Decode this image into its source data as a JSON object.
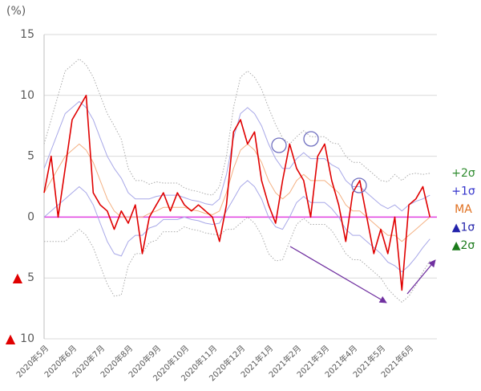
{
  "chart_data": {
    "type": "line",
    "y_label": "(%)",
    "categories": [
      "2020年5月",
      null,
      null,
      null,
      "2020年6月",
      null,
      null,
      null,
      "2020年7月",
      null,
      null,
      null,
      "2020年8月",
      null,
      null,
      null,
      "2020年9月",
      null,
      null,
      null,
      "2020年10月",
      null,
      null,
      null,
      "2020年11月",
      null,
      null,
      null,
      "2020年12月",
      null,
      null,
      null,
      "2021年1月",
      null,
      null,
      null,
      "2021年2月",
      null,
      null,
      null,
      "2021年3月",
      null,
      null,
      null,
      "2021年4月",
      null,
      null,
      null,
      "2021年5月",
      null,
      null,
      null,
      "2021年6月",
      null,
      null,
      null
    ],
    "ylim": [
      -10,
      15
    ],
    "yticks": [
      15,
      10,
      5,
      0,
      {
        "value": -5,
        "label": "▲5"
      },
      {
        "value": -10,
        "label": "▲10"
      }
    ],
    "grid": true,
    "zero_line_color": "#e040e0",
    "series": [
      {
        "color": "#e00000",
        "width": 1.6,
        "values": [
          2,
          5,
          0,
          4,
          8,
          9,
          10,
          2,
          1,
          0.5,
          -1,
          0.5,
          -0.5,
          1,
          -3,
          0,
          1,
          2,
          0.5,
          2,
          1,
          0.5,
          1,
          0.5,
          0,
          -2,
          1,
          7,
          8,
          6,
          7,
          3,
          1,
          -0.5,
          3,
          6,
          4,
          3,
          0,
          5,
          6,
          3,
          1,
          -2,
          2,
          3,
          0,
          -3,
          -1,
          -3,
          0,
          -6,
          1,
          1.5,
          2.5,
          0
        ]
      },
      {
        "name": "+2σ",
        "color": "#aaaaaa",
        "label_color": "#2e8b2e",
        "dash": true,
        "values": [
          6,
          8,
          10,
          12,
          12.5,
          13,
          12.5,
          11.5,
          10,
          8.5,
          7.5,
          6.4,
          4,
          3,
          3,
          2.7,
          2.9,
          2.8,
          2.8,
          2.8,
          2.4,
          2.2,
          2.1,
          1.9,
          1.8,
          2.5,
          5,
          9,
          11.5,
          12,
          11.5,
          10.5,
          9,
          7.6,
          6.5,
          6,
          6.6,
          7.1,
          6.6,
          6.6,
          6.6,
          6.1,
          6,
          5,
          4.5,
          4.5,
          4,
          3.5,
          3,
          2.9,
          3.5,
          3,
          3.5,
          3.6,
          3.5,
          3.6
        ]
      },
      {
        "name": "+1σ",
        "color": "#a8a8e8",
        "label_color": "#3333cc",
        "values": [
          4,
          5.5,
          7,
          8.5,
          9,
          9.5,
          9,
          8,
          6.5,
          5,
          4,
          3.2,
          2,
          1.5,
          1.5,
          1.5,
          1.7,
          1.8,
          1.8,
          1.8,
          1.6,
          1.4,
          1.3,
          1.1,
          1,
          1.5,
          3.5,
          6.5,
          8.5,
          9,
          8.5,
          7.5,
          6,
          4.8,
          4,
          4,
          4.8,
          5.3,
          4.8,
          4.8,
          4.8,
          4.3,
          4,
          3,
          2.5,
          2.5,
          2,
          1.5,
          1,
          0.7,
          1,
          0.5,
          1,
          1.3,
          1.5,
          1.8
        ]
      },
      {
        "name": "MA",
        "color": "#f4b183",
        "label_color": "#e07020",
        "values": [
          2,
          3,
          4,
          5,
          5.5,
          6,
          5.5,
          4.5,
          3,
          1.5,
          0.5,
          0,
          0,
          0,
          0,
          0.3,
          0.5,
          0.8,
          0.8,
          0.8,
          0.8,
          0.6,
          0.5,
          0.3,
          0.2,
          0.5,
          2,
          4,
          5.5,
          6,
          5.5,
          4.5,
          3,
          2,
          1.5,
          2,
          3,
          3.5,
          3,
          3,
          3,
          2.5,
          2,
          1,
          0.5,
          0.5,
          0,
          -0.5,
          -1,
          -1.5,
          -1.5,
          -2,
          -1.5,
          -1,
          -0.5,
          0
        ]
      },
      {
        "name": "▲1σ",
        "color": "#a8a8e8",
        "label_color": "#2222aa",
        "values": [
          0,
          0.5,
          1,
          1.5,
          2,
          2.5,
          2,
          1,
          -0.5,
          -2,
          -3,
          -3.2,
          -2,
          -1.5,
          -1.5,
          -0.9,
          -0.7,
          -0.2,
          -0.2,
          -0.2,
          0,
          -0.2,
          -0.3,
          -0.5,
          -0.6,
          -0.5,
          0.5,
          1.5,
          2.5,
          3,
          2.5,
          1.5,
          0,
          -0.8,
          -1,
          0,
          1.2,
          1.7,
          1.2,
          1.2,
          1.2,
          0.7,
          0,
          -1,
          -1.5,
          -1.5,
          -2,
          -2.5,
          -3,
          -3.7,
          -4,
          -4.5,
          -4,
          -3.3,
          -2.5,
          -1.8
        ]
      },
      {
        "name": "▲2σ",
        "color": "#aaaaaa",
        "label_color": "#1a7a1a",
        "dash": true,
        "values": [
          -2,
          -2,
          -2,
          -2,
          -1.5,
          -1,
          -1.5,
          -2.5,
          -4,
          -5.5,
          -6.5,
          -6.4,
          -4,
          -3,
          -3,
          -2.1,
          -1.9,
          -1.2,
          -1.2,
          -1.2,
          -0.8,
          -1,
          -1.1,
          -1.3,
          -1.4,
          -1.5,
          -1,
          -1,
          -0.5,
          0,
          -0.5,
          -1.5,
          -3,
          -3.6,
          -3.5,
          -2,
          -0.6,
          -0.1,
          -0.6,
          -0.6,
          -0.6,
          -1.1,
          -2,
          -3,
          -3.5,
          -3.5,
          -4,
          -4.5,
          -5,
          -5.9,
          -6.5,
          -7,
          -6.5,
          -5.6,
          -4.5,
          -3.6
        ]
      }
    ]
  }
}
